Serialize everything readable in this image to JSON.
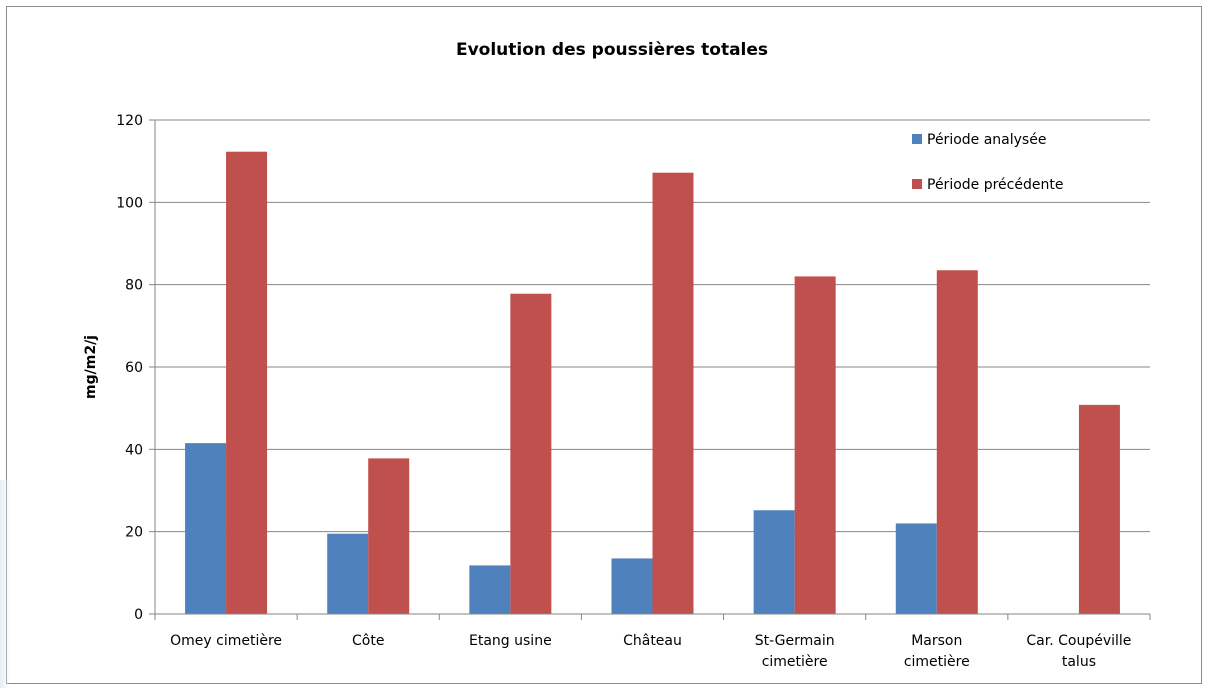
{
  "chart_data": {
    "type": "bar",
    "title": "Evolution des poussières totales",
    "xlabel": "",
    "ylabel": "mg/m2/j",
    "ylim": [
      0,
      120
    ],
    "yticks": [
      0,
      20,
      40,
      60,
      80,
      100,
      120
    ],
    "grid": true,
    "legend_position": "top-right",
    "categories": [
      [
        "Omey cimetière"
      ],
      [
        "Côte"
      ],
      [
        "Etang usine"
      ],
      [
        "Château"
      ],
      [
        "St-Germain",
        "cimetière"
      ],
      [
        "Marson",
        "cimetière"
      ],
      [
        "Car. Coupéville",
        "talus"
      ]
    ],
    "series": [
      {
        "name": "Période analysée",
        "color": "#4f81bd",
        "values": [
          41.5,
          19.5,
          11.8,
          13.5,
          25.2,
          22.0,
          0
        ]
      },
      {
        "name": "Période précédente",
        "color": "#c0504d",
        "values": [
          112.3,
          37.8,
          77.8,
          107.2,
          82.0,
          83.5,
          50.8
        ]
      }
    ]
  }
}
